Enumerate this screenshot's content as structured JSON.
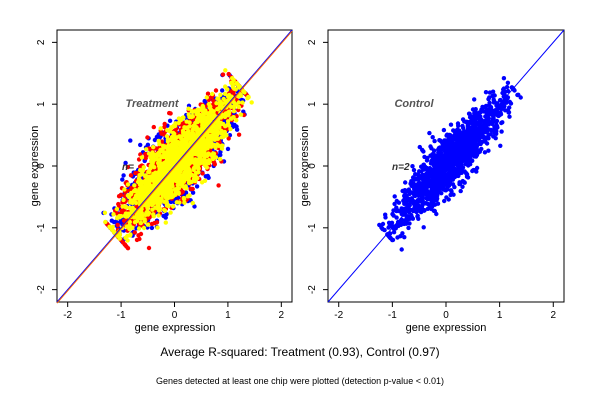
{
  "chart_data": [
    {
      "type": "scatter",
      "panel_label": "Treatment",
      "n_label": "n=",
      "xlabel": "gene expression",
      "ylabel": "gene expression",
      "xlim": [
        -2.2,
        2.2
      ],
      "ylim": [
        -2.2,
        2.2
      ],
      "x_ticks": [
        "-2",
        "-1",
        "0",
        "1",
        "2"
      ],
      "y_ticks": [
        "-2",
        "-1",
        "0",
        "1",
        "2"
      ],
      "x_tick_values": [
        -2,
        -1,
        0,
        1,
        2
      ],
      "y_tick_values": [
        -2,
        -1,
        0,
        1,
        2
      ],
      "diagonal_colors": [
        "#0000ff",
        "#ff6600"
      ],
      "point_colors": [
        "#0000ff",
        "#ff0000",
        "#ffff00"
      ],
      "cloud": {
        "x_range": [
          -1.1,
          1.25
        ],
        "spread": 0.16
      }
    },
    {
      "type": "scatter",
      "panel_label": "Control",
      "n_label": "n=2",
      "xlabel": "gene expression",
      "ylabel": "gene expression",
      "xlim": [
        -2.2,
        2.2
      ],
      "ylim": [
        -2.2,
        2.2
      ],
      "x_ticks": [
        "-2",
        "-1",
        "0",
        "1",
        "2"
      ],
      "y_ticks": [
        "-2",
        "-1",
        "0",
        "1",
        "2"
      ],
      "x_tick_values": [
        -2,
        -1,
        0,
        1,
        2
      ],
      "y_tick_values": [
        -2,
        -1,
        0,
        1,
        2
      ],
      "diagonal_colors": [
        "#0000ff"
      ],
      "point_colors": [
        "#0000ff"
      ],
      "cloud": {
        "x_range": [
          -1.1,
          1.25
        ],
        "spread": 0.12
      }
    }
  ],
  "caption": "Average R-squared: Treatment (0.93), Control (0.97)",
  "footnote": "Genes detected at least one chip were plotted (detection p-value < 0.01)"
}
